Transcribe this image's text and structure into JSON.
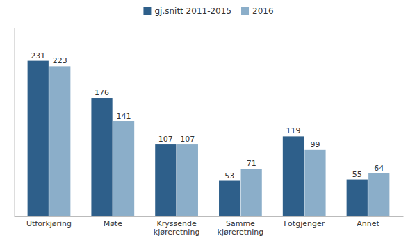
{
  "chart_data": {
    "type": "bar",
    "categories": [
      "Utforkjøring",
      "Møte",
      "Kryssende\nkjøreretning",
      "Samme\nkjøreretning",
      "Fotgjenger",
      "Annet"
    ],
    "series": [
      {
        "name": "gj.snitt 2011-2015",
        "color": "#2E5F8A",
        "values": [
          231,
          176,
          107,
          53,
          119,
          55
        ]
      },
      {
        "name": "2016",
        "color": "#8BAEC9",
        "values": [
          223,
          141,
          107,
          71,
          99,
          64
        ]
      }
    ],
    "ylim": [
      0,
      280
    ],
    "grid": false,
    "legend": "top",
    "data_labels": true,
    "tick_labels": "x"
  }
}
